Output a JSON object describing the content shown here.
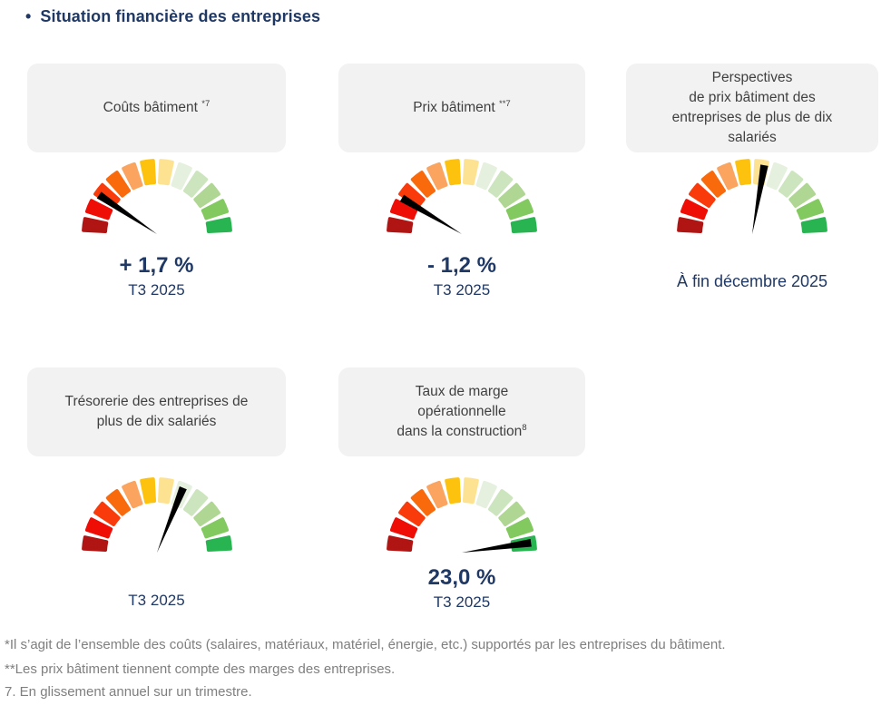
{
  "title": {
    "bullet": "•",
    "text": "Situation financière des entreprises"
  },
  "colors": {
    "title_navy": "#1F3864",
    "value_navy": "#1F3864",
    "card_header_bg": "#F2F2F2",
    "card_header_text": "#404040",
    "footnote_gray": "#7F7F7F"
  },
  "gauge": {
    "needle_color": "#000000",
    "segment_colors": [
      "#B01513",
      "#EE0E06",
      "#F93B0B",
      "#F96A0D",
      "#FBA45F",
      "#FDC20D",
      "#FDE391",
      "#E6F0DE",
      "#CDE5BE",
      "#AFD693",
      "#82C95F",
      "#28B450"
    ]
  },
  "chart_data": [
    {
      "type": "gauge",
      "id": "couts-batiment",
      "header": {
        "lines": [
          "Coûts bâtiment "
        ],
        "sup": "*7"
      },
      "segments_total": 12,
      "scale": "red (left) to green (right), semicircle",
      "needle_angle_deg": 146,
      "needle_zone": "red-orange (low / unfavorable)",
      "value_label": "+ 1,7 %",
      "period": "T3 2025"
    },
    {
      "type": "gauge",
      "id": "prix-batiment",
      "header": {
        "lines": [
          "Prix bâtiment "
        ],
        "sup": "**7"
      },
      "segments_total": 12,
      "scale": "red (left) to green (right), semicircle",
      "needle_angle_deg": 149,
      "needle_zone": "red (low / unfavorable)",
      "value_label": "- 1,2 %",
      "period": "T3 2025"
    },
    {
      "type": "gauge",
      "id": "perspectives-prix-batiment",
      "header": {
        "lines": [
          "Perspectives",
          "de prix bâtiment des",
          "entreprises de plus de dix",
          "salariés"
        ],
        "sup": ""
      },
      "segments_total": 12,
      "scale": "red (left) to green (right), semicircle",
      "needle_angle_deg": 80,
      "needle_zone": "yellow, just right of vertical (neutral)",
      "value_label": "",
      "period": "À fin décembre 2025"
    },
    {
      "type": "gauge",
      "id": "tresorerie",
      "header": {
        "lines": [
          "Trésorerie des entreprises de",
          "plus de dix salariés"
        ],
        "sup": ""
      },
      "segments_total": 12,
      "scale": "red (left) to green (right), semicircle",
      "needle_angle_deg": 68,
      "needle_zone": "pale green, right of vertical (slightly favorable)",
      "value_label": "",
      "period": "T3 2025"
    },
    {
      "type": "gauge",
      "id": "taux-marge-operationnelle",
      "header": {
        "lines": [
          "Taux de marge",
          "opérationnelle",
          "dans la construction"
        ],
        "sup": "8"
      },
      "segments_total": 12,
      "scale": "red (left) to green (right), semicircle",
      "needle_angle_deg": 8,
      "needle_zone": "green end (favorable)",
      "value_label": "23,0 %",
      "period": "T3 2025"
    }
  ],
  "footnotes": [
    "*Il s’agit de l’ensemble des coûts (salaires, matériaux, matériel, énergie, etc.) supportés par les entreprises du bâtiment.",
    "**Les prix bâtiment tiennent compte des marges des entreprises.",
    "7. En glissement annuel sur un trimestre."
  ]
}
